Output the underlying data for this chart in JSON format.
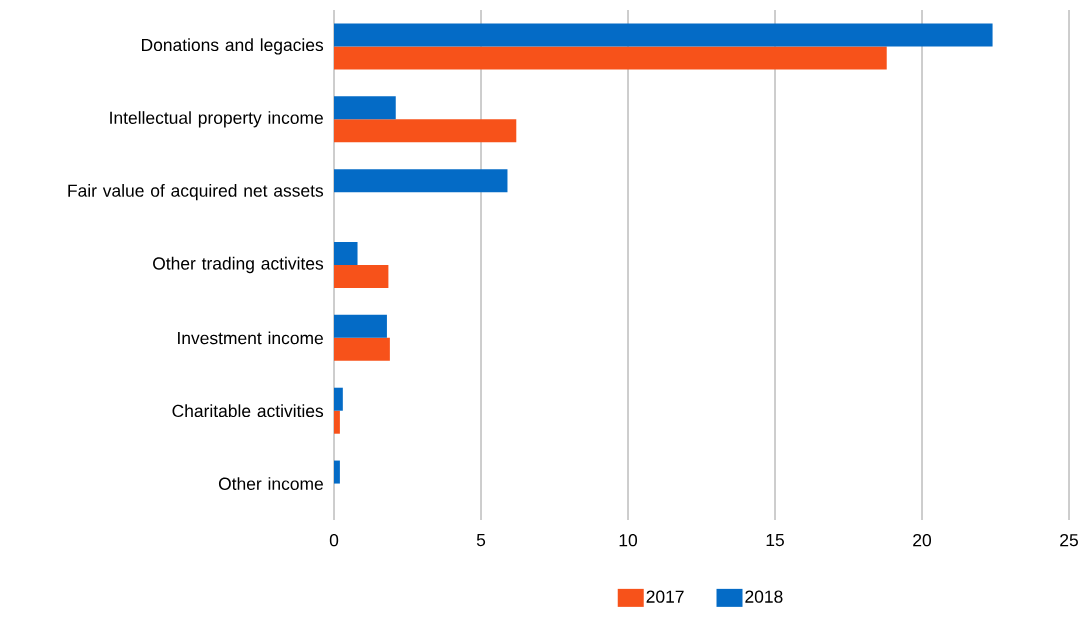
{
  "chart_data": {
    "type": "bar",
    "orientation": "horizontal",
    "categories": [
      "Donations and legacies",
      "Intellectual property income",
      "Fair value of acquired net assets",
      "Other trading activites",
      "Investment income",
      "Charitable activities",
      "Other income"
    ],
    "series": [
      {
        "name": "2017",
        "color": "#f7521a",
        "values": [
          18.8,
          6.2,
          null,
          1.85,
          1.9,
          0.2,
          null
        ]
      },
      {
        "name": "2018",
        "color": "#046bc6",
        "values": [
          22.4,
          2.1,
          5.9,
          0.8,
          1.8,
          0.3,
          0.2
        ]
      }
    ],
    "xlim": [
      0,
      25
    ],
    "xticks": [
      0,
      5,
      10,
      15,
      20,
      25
    ],
    "grid": "x",
    "legend": "bottom"
  }
}
